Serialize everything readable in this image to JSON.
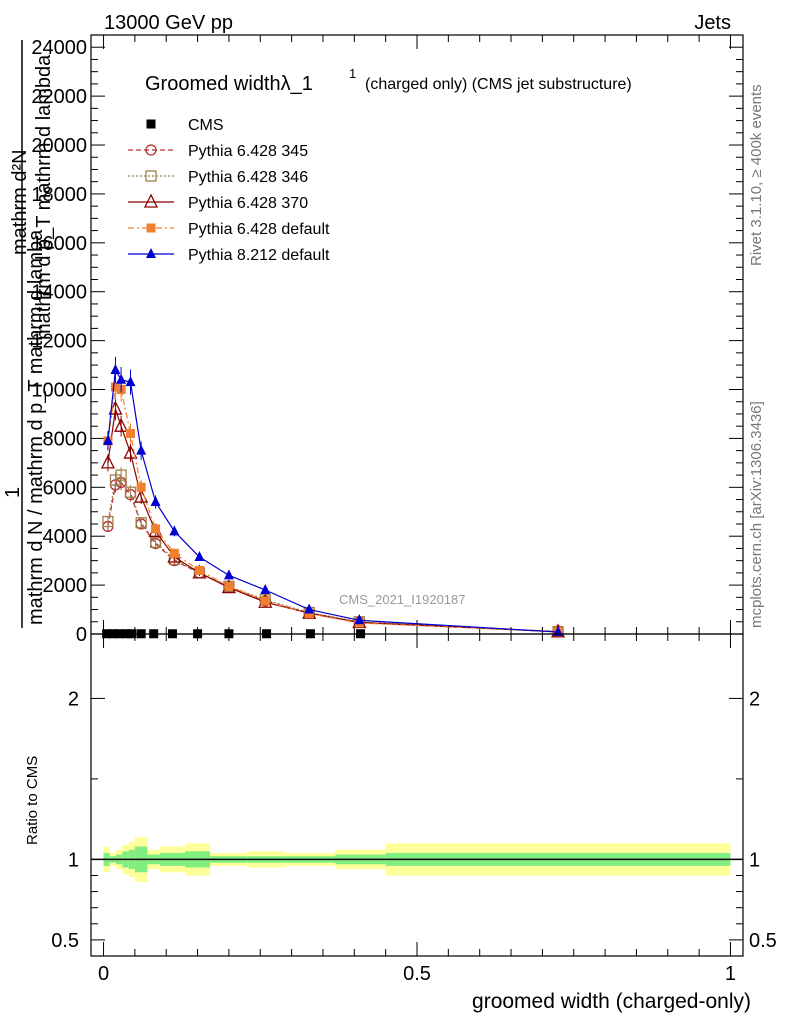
{
  "header": {
    "left": "13000 GeV pp",
    "right": "Jets"
  },
  "side": {
    "rivet": "Rivet 3.1.10, ≥ 400k events",
    "mcplots": "mcplots.cern.ch [arXiv:1306.3436]"
  },
  "chart_data": [
    {
      "type": "line",
      "title": "Groomed widthλ_1",
      "title_sup": "1",
      "subtitle": "(charged only) (CMS jet substructure)",
      "watermark": "CMS_2021_I1920187",
      "ylabel_lines": [
        "mathrm d²N",
        "1",
        "mathrm d N / mathrm d p_T mathrm d lamba",
        "mathrm d p_T mathrm d lambda"
      ],
      "xlim": [
        -0.02,
        1.02
      ],
      "ylim": [
        0,
        24500
      ],
      "yticks": [
        0,
        2000,
        4000,
        6000,
        8000,
        10000,
        12000,
        14000,
        16000,
        18000,
        20000,
        22000,
        24000
      ],
      "ytick_labels": [
        "0",
        "2000",
        "4000",
        "6000",
        "8000",
        "10000",
        "12000",
        "14000",
        "16000",
        "18000",
        "20000",
        "22000",
        "24000"
      ],
      "legend_position": "top-left",
      "legend": [
        "CMS",
        "Pythia 6.428 345",
        "Pythia 6.428 346",
        "Pythia 6.428 370",
        "Pythia 6.428 default",
        "Pythia 8.212 default"
      ],
      "series": [
        {
          "name": "CMS",
          "color": "#000000",
          "marker": "square",
          "x": [
            0.005,
            0.015,
            0.025,
            0.035,
            0.045,
            0.06,
            0.08,
            0.11,
            0.15,
            0.2,
            0.26,
            0.33,
            0.41
          ],
          "y": [
            10,
            10,
            10,
            10,
            10,
            10,
            10,
            10,
            10,
            10,
            10,
            10,
            10
          ]
        },
        {
          "name": "Pythia 6.428 345",
          "color": "#b03030",
          "marker": "open-circle",
          "dash": "5,3",
          "x": [
            0.007,
            0.019,
            0.028,
            0.043,
            0.06,
            0.083,
            0.113,
            0.153,
            0.2,
            0.258,
            0.328,
            0.408,
            0.725
          ],
          "y": [
            4400,
            6100,
            6200,
            5700,
            4500,
            3700,
            3000,
            2500,
            1900,
            1350,
            850,
            480,
            100
          ]
        },
        {
          "name": "Pythia 6.428 346",
          "color": "#a08050",
          "marker": "open-square",
          "dash": "2,2",
          "x": [
            0.007,
            0.019,
            0.028,
            0.043,
            0.06,
            0.083,
            0.113,
            0.153,
            0.2,
            0.258,
            0.328,
            0.408,
            0.725
          ],
          "y": [
            4600,
            6300,
            6500,
            5800,
            4550,
            3750,
            3050,
            2500,
            1950,
            1400,
            880,
            500,
            100
          ]
        },
        {
          "name": "Pythia 6.428 370",
          "color": "#8b0000",
          "marker": "open-triangle",
          "x": [
            0.007,
            0.019,
            0.028,
            0.043,
            0.06,
            0.083,
            0.113,
            0.153,
            0.2,
            0.258,
            0.328,
            0.408,
            0.725
          ],
          "y": [
            7000,
            9200,
            8500,
            7400,
            5600,
            4200,
            3150,
            2500,
            1900,
            1300,
            850,
            470,
            90
          ]
        },
        {
          "name": "Pythia 6.428 default",
          "color": "#f08030",
          "marker": "filled-square",
          "dash": "6,3,2,3",
          "x": [
            0.007,
            0.019,
            0.028,
            0.043,
            0.06,
            0.083,
            0.113,
            0.153,
            0.2,
            0.258,
            0.328,
            0.408,
            0.725
          ],
          "y": [
            7900,
            10100,
            10000,
            8200,
            6000,
            4300,
            3300,
            2600,
            1950,
            1350,
            830,
            450,
            90
          ]
        },
        {
          "name": "Pythia 8.212 default",
          "color": "#0000d0",
          "marker": "filled-triangle",
          "x": [
            0.007,
            0.019,
            0.028,
            0.043,
            0.06,
            0.083,
            0.113,
            0.153,
            0.2,
            0.258,
            0.328,
            0.408,
            0.725
          ],
          "y": [
            7900,
            10800,
            10400,
            10300,
            7500,
            5400,
            4200,
            3150,
            2400,
            1800,
            1000,
            560,
            80
          ]
        }
      ]
    },
    {
      "type": "band",
      "ylabel": "Ratio to CMS",
      "xlabel": "groomed width (charged-only)",
      "xlim": [
        -0.02,
        1.02
      ],
      "ylim": [
        0.4,
        2.4
      ],
      "yticks": [
        0.5,
        1,
        2
      ],
      "ytick_labels": [
        "0.5",
        "1",
        "2"
      ],
      "xticks": [
        0,
        0.5,
        1
      ],
      "xtick_labels": [
        "0",
        "0.5",
        "1"
      ],
      "bins": [
        0,
        0.01,
        0.02,
        0.03,
        0.04,
        0.05,
        0.07,
        0.09,
        0.13,
        0.17,
        0.23,
        0.29,
        0.37,
        0.45,
        1.0
      ],
      "stat_err": [
        0.04,
        0.02,
        0.03,
        0.05,
        0.06,
        0.08,
        0.03,
        0.04,
        0.05,
        0.02,
        0.02,
        0.02,
        0.03,
        0.04
      ],
      "total_err": [
        0.08,
        0.04,
        0.06,
        0.09,
        0.11,
        0.14,
        0.06,
        0.08,
        0.1,
        0.04,
        0.05,
        0.04,
        0.06,
        0.1
      ],
      "stat_color": "#80ee80",
      "total_color": "#ffff99",
      "line_y": 1.0
    }
  ]
}
